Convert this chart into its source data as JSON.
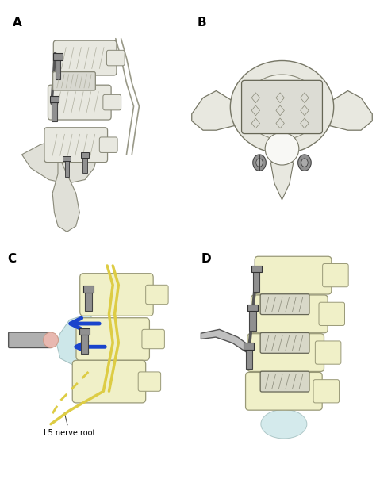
{
  "figure_width": 4.74,
  "figure_height": 6.09,
  "dpi": 100,
  "bg_color": "#ffffff",
  "panels": [
    "A",
    "B",
    "C",
    "D"
  ],
  "panel_positions": {
    "A": [
      0.01,
      0.5,
      0.48,
      0.48
    ],
    "B": [
      0.5,
      0.5,
      0.5,
      0.48
    ],
    "C": [
      0.01,
      0.01,
      0.5,
      0.48
    ],
    "D": [
      0.51,
      0.01,
      0.49,
      0.48
    ]
  },
  "panel_label_fontsize": 11,
  "panel_label_color": "#000000",
  "panel_label_weight": "bold",
  "spine_color_light": "#d8d8c8",
  "spine_color_mid": "#b0b0a0",
  "spine_color_dark": "#888878",
  "bone_fill_A": "#e8e8e0",
  "bone_fill_BCD": "#f0f0c8",
  "implant_color": "#909090",
  "arrow_color": "#1a44cc",
  "nerve_color": "#e8c080",
  "fluid_color": "#c8e8e8",
  "tissue_color": "#e8b8b0",
  "annotation_text_C": "L5 nerve root",
  "annotation_fontsize": 7,
  "line_color": "#555555",
  "hatch_color": "#aaaaaa"
}
